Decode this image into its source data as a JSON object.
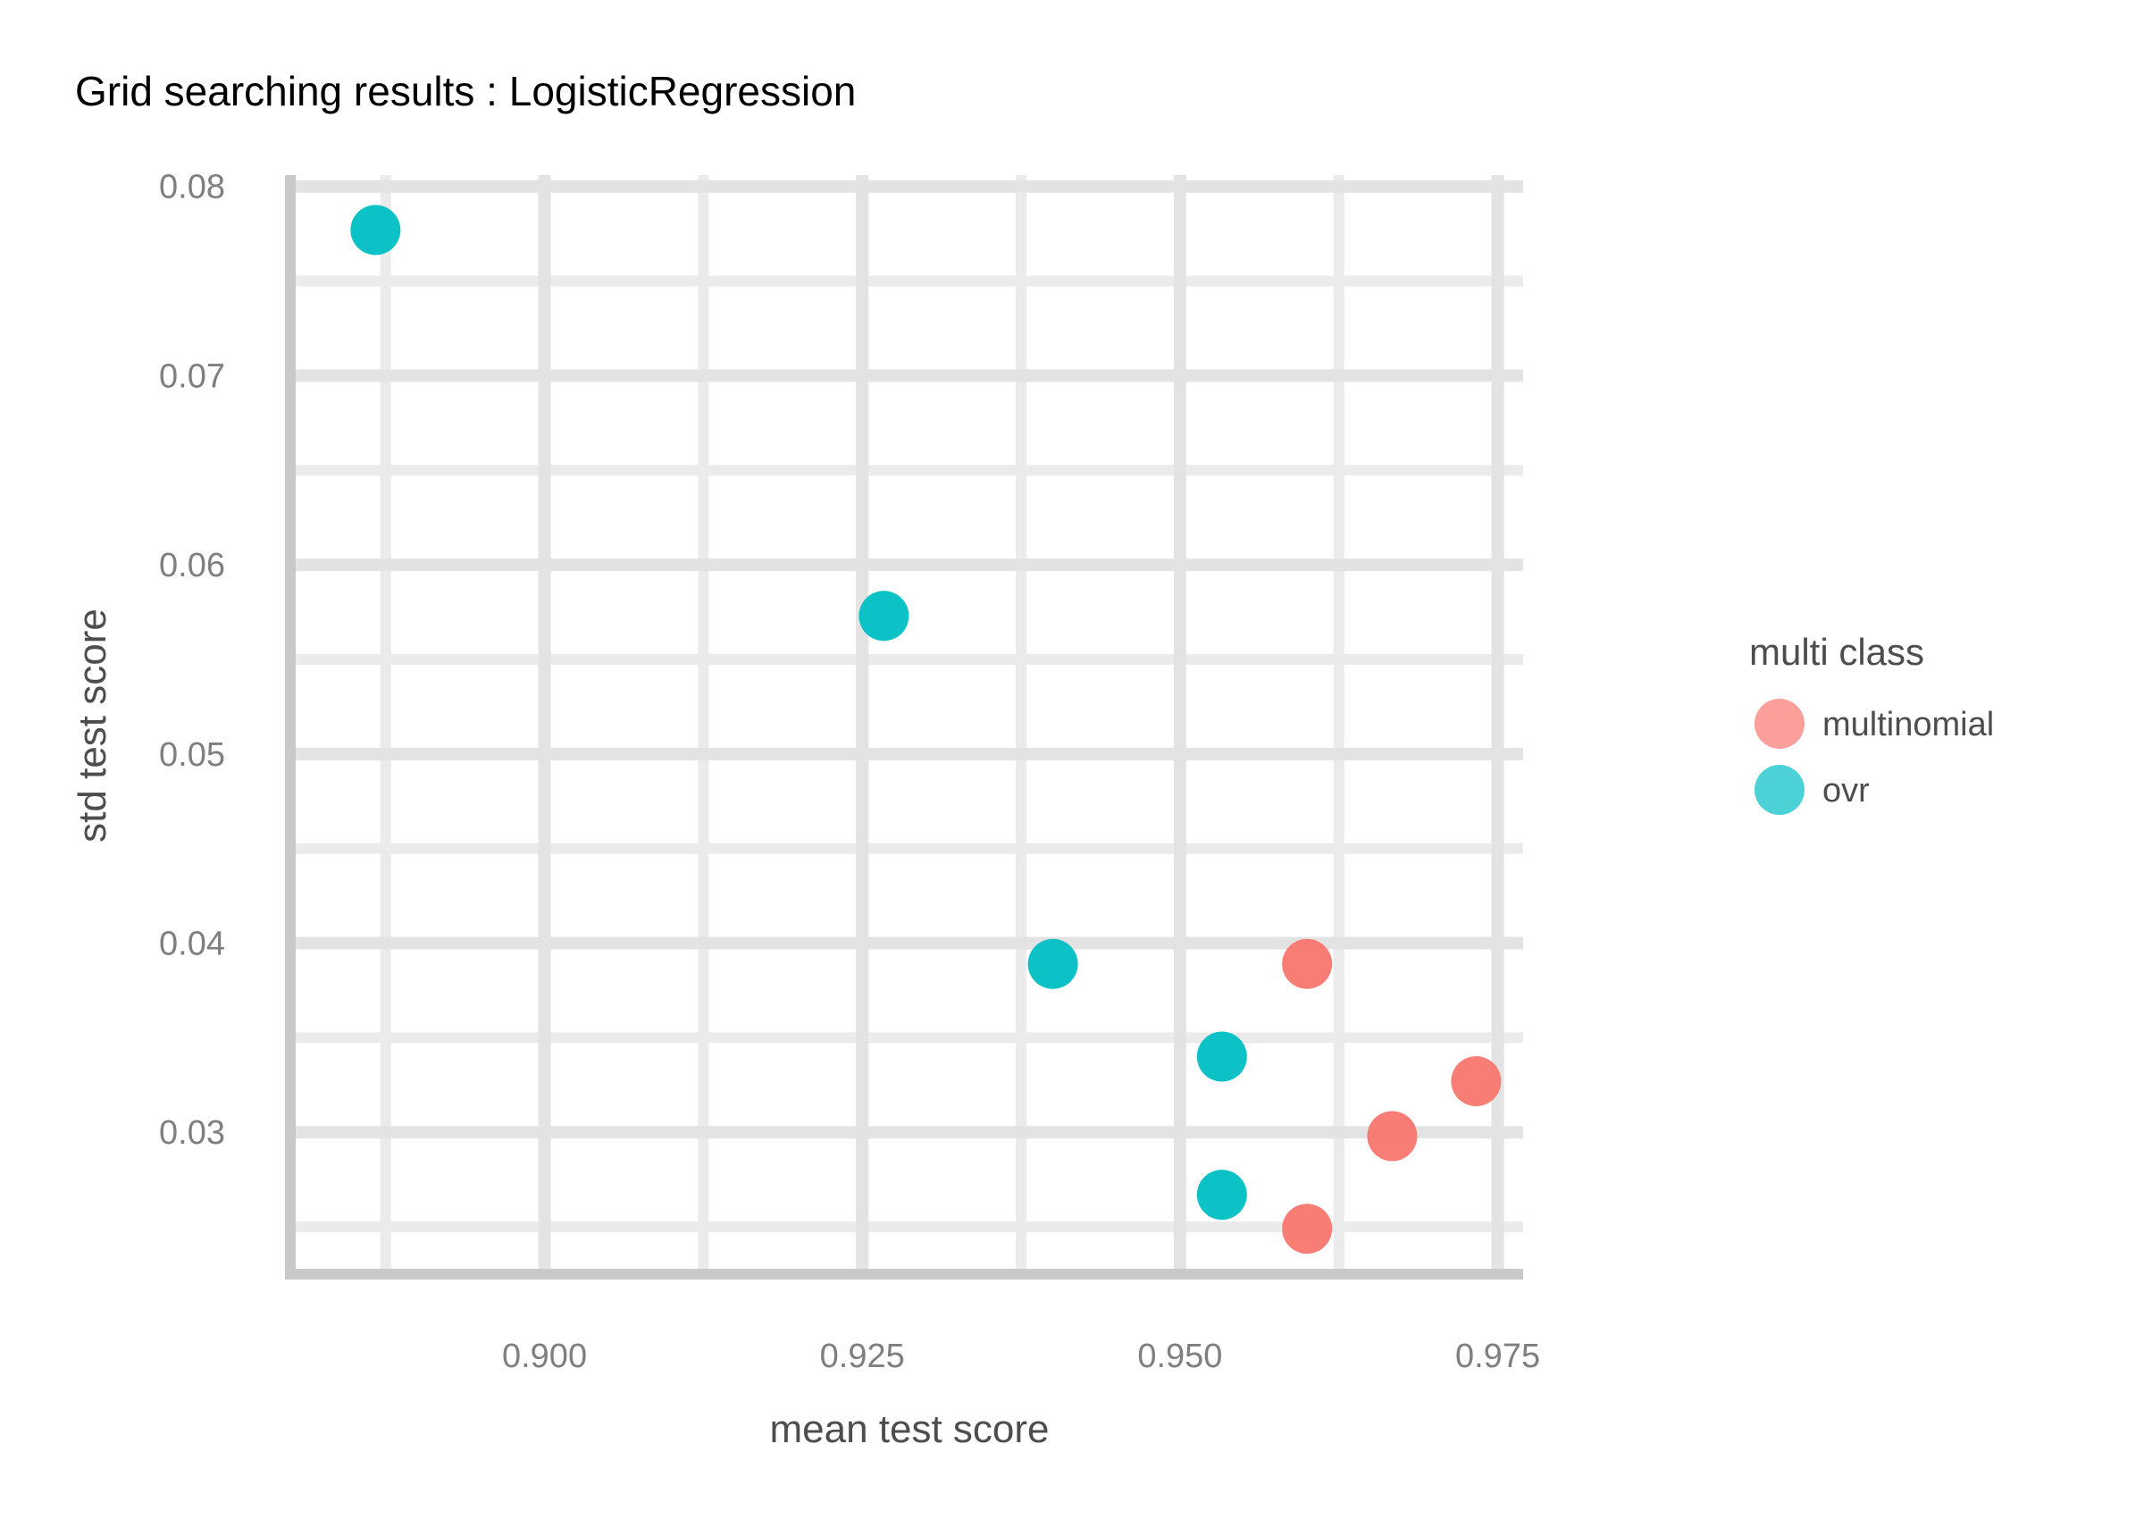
{
  "chart_data": {
    "type": "scatter",
    "title": "Grid searching results :  LogisticRegression",
    "xlabel": "mean test score",
    "ylabel": "std test score",
    "xlim": [
      0.88,
      0.977
    ],
    "ylim": [
      0.0225,
      0.0806
    ],
    "x_ticks": [
      0.9,
      0.925,
      0.95,
      0.975
    ],
    "x_tick_labels": [
      "0.900",
      "0.925",
      "0.950",
      "0.975"
    ],
    "y_ticks": [
      0.03,
      0.04,
      0.05,
      0.06,
      0.07,
      0.08
    ],
    "y_tick_labels": [
      "0.03",
      "0.04",
      "0.05",
      "0.06",
      "0.07",
      "0.08"
    ],
    "grid": true,
    "legend": {
      "title": "multi class",
      "placement": "right"
    },
    "series": [
      {
        "name": "multinomial",
        "color": "#F8766D",
        "points": [
          {
            "x": 0.96,
            "y": 0.0389
          },
          {
            "x": 0.9733,
            "y": 0.0327
          },
          {
            "x": 0.9667,
            "y": 0.0298
          },
          {
            "x": 0.96,
            "y": 0.0249
          }
        ]
      },
      {
        "name": "ovr",
        "color": "#00BFC4",
        "points": [
          {
            "x": 0.8867,
            "y": 0.0777
          },
          {
            "x": 0.9267,
            "y": 0.0573
          },
          {
            "x": 0.94,
            "y": 0.0389
          },
          {
            "x": 0.9533,
            "y": 0.034
          },
          {
            "x": 0.9533,
            "y": 0.0267
          }
        ]
      }
    ]
  }
}
